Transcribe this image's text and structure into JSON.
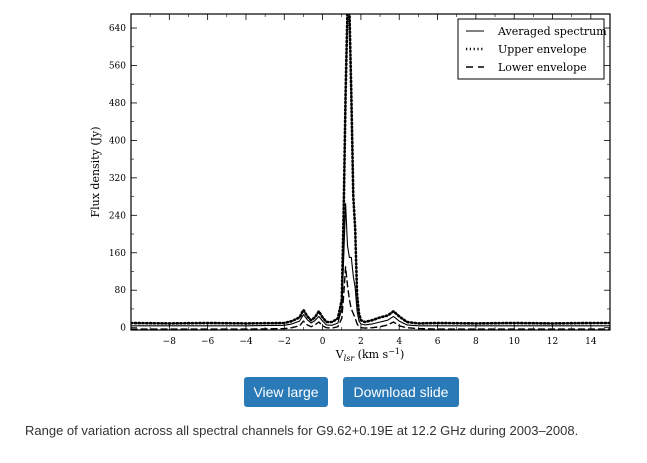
{
  "chart_data": {
    "type": "line",
    "xlabel": "V",
    "xlabel_sub": "lsr",
    "xlabel_unit": "(km s",
    "xlabel_unit_sup": "−1",
    "xlabel_unit_end": ")",
    "ylabel": "Flux density (Jy)",
    "xlim": [
      -10,
      15
    ],
    "ylim": [
      -5,
      670
    ],
    "xticks": [
      -8,
      -6,
      -4,
      -2,
      0,
      2,
      4,
      6,
      8,
      10,
      12,
      14
    ],
    "xtick_labels": [
      "−8",
      "−6",
      "−4",
      "−2",
      "0",
      "2",
      "4",
      "6",
      "8",
      "10",
      "12",
      "14"
    ],
    "yticks": [
      0,
      80,
      160,
      240,
      320,
      400,
      480,
      560,
      640
    ],
    "yticks_labels": [
      "0",
      "80",
      "160",
      "240",
      "320",
      "400",
      "480",
      "560",
      "640"
    ],
    "legend_position": "top-right",
    "series": [
      {
        "name": "Averaged spectrum",
        "style": "solid",
        "x": [
          -10,
          -8,
          -6,
          -4,
          -2,
          -1.6,
          -1.2,
          -1.0,
          -0.8,
          -0.6,
          -0.4,
          -0.2,
          0,
          0.2,
          0.5,
          0.8,
          1.0,
          1.1,
          1.2,
          1.3,
          1.4,
          1.5,
          1.6,
          1.7,
          1.8,
          1.9,
          2.0,
          2.2,
          2.6,
          3.0,
          3.4,
          3.7,
          4.0,
          4.4,
          5,
          6,
          8,
          10,
          12,
          14,
          15
        ],
        "y": [
          4,
          4,
          4,
          4,
          5,
          8,
          14,
          28,
          17,
          10,
          15,
          24,
          14,
          6,
          5,
          10,
          40,
          150,
          265,
          175,
          150,
          150,
          110,
          85,
          35,
          14,
          8,
          6,
          8,
          12,
          16,
          24,
          14,
          6,
          4,
          4,
          4,
          4,
          4,
          4,
          4
        ]
      },
      {
        "name": "Upper envelope",
        "style": "dotted",
        "x": [
          -10,
          -8,
          -6,
          -4,
          -2,
          -1.6,
          -1.2,
          -1.0,
          -0.8,
          -0.6,
          -0.4,
          -0.2,
          0,
          0.2,
          0.5,
          0.8,
          1.0,
          1.1,
          1.2,
          1.3,
          1.4,
          1.5,
          1.6,
          1.7,
          1.8,
          1.9,
          2.0,
          2.2,
          2.6,
          3.0,
          3.4,
          3.7,
          4.0,
          4.4,
          5,
          6,
          8,
          10,
          12,
          14,
          15
        ],
        "y": [
          10,
          9,
          10,
          9,
          10,
          14,
          22,
          38,
          24,
          16,
          22,
          35,
          22,
          12,
          12,
          20,
          60,
          250,
          500,
          680,
          680,
          500,
          280,
          210,
          70,
          30,
          16,
          12,
          16,
          22,
          26,
          35,
          24,
          12,
          9,
          10,
          9,
          10,
          9,
          10,
          10
        ]
      },
      {
        "name": "Lower envelope",
        "style": "dashed",
        "x": [
          -10,
          -8,
          -6,
          -4,
          -2,
          -1.6,
          -1.2,
          -1.0,
          -0.8,
          -0.6,
          -0.4,
          -0.2,
          0,
          0.2,
          0.5,
          0.8,
          1.0,
          1.1,
          1.2,
          1.3,
          1.4,
          1.5,
          1.6,
          1.7,
          1.8,
          1.9,
          2.0,
          2.2,
          2.6,
          3.0,
          3.4,
          3.7,
          4.0,
          4.4,
          5,
          6,
          8,
          10,
          12,
          14,
          15
        ],
        "y": [
          -3,
          -3,
          -3,
          -3,
          -2,
          0,
          4,
          14,
          6,
          2,
          6,
          12,
          4,
          0,
          -1,
          2,
          20,
          70,
          130,
          90,
          60,
          40,
          30,
          20,
          8,
          2,
          0,
          -1,
          0,
          2,
          6,
          12,
          4,
          0,
          -2,
          -3,
          -3,
          -3,
          -3,
          -3,
          -3
        ]
      }
    ]
  },
  "buttons": {
    "view_large": "View large",
    "download_slide": "Download slide"
  },
  "caption": "Range of variation across all spectral channels for G9.62+0.19E at 12.2 GHz during 2003–2008."
}
